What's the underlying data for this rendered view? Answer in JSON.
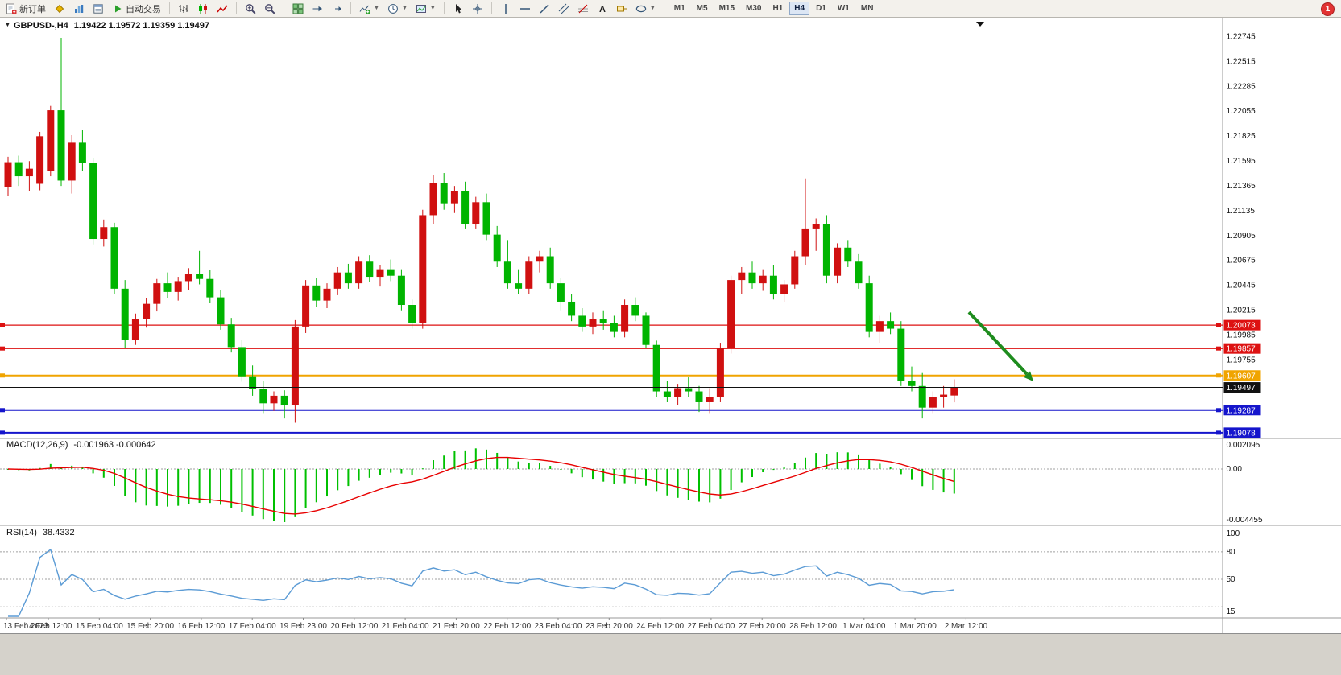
{
  "app": {
    "notification_count": "1",
    "toolbar": {
      "groups": [
        {
          "buttons": [
            {
              "name": "new-order",
              "icon": "new-order-icon",
              "label": "新订单"
            },
            {
              "name": "quotes",
              "icon": "quotes-icon"
            },
            {
              "name": "market-watch",
              "icon": "market-watch-icon"
            },
            {
              "name": "data-window",
              "icon": "data-window-icon"
            },
            {
              "name": "auto-trading",
              "icon": "autotrade-icon",
              "label": "自动交易"
            }
          ]
        },
        {
          "buttons": [
            {
              "name": "bar-chart-mode",
              "icon": "bar-chart-icon"
            },
            {
              "name": "candle-chart-mode",
              "icon": "candle-chart-icon"
            },
            {
              "name": "line-chart-mode",
              "icon": "line-chart-icon"
            }
          ]
        },
        {
          "buttons": [
            {
              "name": "zoom-in",
              "icon": "zoom-in-icon"
            },
            {
              "name": "zoom-out",
              "icon": "zoom-out-icon"
            }
          ]
        },
        {
          "buttons": [
            {
              "name": "tile-windows",
              "icon": "tile-windows-icon"
            },
            {
              "name": "auto-scroll",
              "icon": "auto-scroll-icon"
            },
            {
              "name": "chart-shift",
              "icon": "chart-shift-icon"
            }
          ]
        },
        {
          "buttons": [
            {
              "name": "indicators",
              "icon": "indicators-icon",
              "dropdown": true
            },
            {
              "name": "periods",
              "icon": "period-icon",
              "dropdown": true
            },
            {
              "name": "templates",
              "icon": "template-icon",
              "dropdown": true
            }
          ]
        },
        {
          "buttons": [
            {
              "name": "cursor",
              "icon": "cursor-icon"
            },
            {
              "name": "crosshair",
              "icon": "crosshair-icon"
            }
          ]
        },
        {
          "buttons": [
            {
              "name": "vertical-line",
              "icon": "vertical-line-icon"
            },
            {
              "name": "horizontal-line",
              "icon": "horizontal-line-icon"
            },
            {
              "name": "trendline",
              "icon": "trendline-icon"
            },
            {
              "name": "channel",
              "icon": "channel-icon"
            },
            {
              "name": "fibonacci",
              "icon": "fibonacci-icon"
            },
            {
              "name": "text-tool",
              "icon": "text-icon"
            },
            {
              "name": "label-tool",
              "icon": "label-icon"
            },
            {
              "name": "shapes",
              "icon": "shapes-icon",
              "dropdown": true
            }
          ]
        }
      ],
      "timeframes": {
        "items": [
          "M1",
          "M5",
          "M15",
          "M30",
          "H1",
          "H4",
          "D1",
          "W1",
          "MN"
        ],
        "active": "H4"
      }
    }
  },
  "chart_data": {
    "type": "candlestick",
    "title": "GBPUSD-,H4",
    "symbol": "GBPUSD-",
    "timeframe": "H4",
    "header_ohlc": "1.19422 1.19572 1.19359 1.19497",
    "ohlc_display": {
      "open": "1.19422",
      "high": "1.19572",
      "low": "1.19359",
      "close": "1.19497"
    },
    "price_axis_ticks": [
      "1.22745",
      "1.22515",
      "1.22285",
      "1.22055",
      "1.21825",
      "1.21595",
      "1.21365",
      "1.21135",
      "1.20905",
      "1.20675",
      "1.20445",
      "1.20215",
      "1.19985",
      "1.19755"
    ],
    "time_labels": [
      "13 Feb 2023",
      "14 Feb 12:00",
      "15 Feb 04:00",
      "15 Feb 20:00",
      "16 Feb 12:00",
      "17 Feb 04:00",
      "19 Feb 23:00",
      "20 Feb 12:00",
      "21 Feb 04:00",
      "21 Feb 20:00",
      "22 Feb 12:00",
      "23 Feb 04:00",
      "23 Feb 20:00",
      "24 Feb 12:00",
      "27 Feb 04:00",
      "27 Feb 20:00",
      "28 Feb 12:00",
      "1 Mar 04:00",
      "1 Mar 20:00",
      "2 Mar 12:00"
    ],
    "candles": [
      [
        1.2135,
        1.2163,
        1.2127,
        1.2158
      ],
      [
        1.2158,
        1.2164,
        1.2136,
        1.2145
      ],
      [
        1.2145,
        1.2159,
        1.2131,
        1.2152
      ],
      [
        1.2138,
        1.2186,
        1.2132,
        1.2182
      ],
      [
        1.215,
        1.221,
        1.2145,
        1.2206
      ],
      [
        1.2206,
        1.2273,
        1.2136,
        1.2141
      ],
      [
        1.2141,
        1.2183,
        1.2129,
        1.2176
      ],
      [
        1.2176,
        1.2188,
        1.215,
        1.2157
      ],
      [
        1.2157,
        1.2162,
        1.2082,
        1.2087
      ],
      [
        1.2087,
        1.2105,
        1.208,
        1.2098
      ],
      [
        1.2098,
        1.2102,
        1.2036,
        1.2041
      ],
      [
        1.2041,
        1.2049,
        1.1986,
        1.1994
      ],
      [
        1.1994,
        1.2018,
        1.1989,
        1.2013
      ],
      [
        1.2013,
        1.2032,
        1.2005,
        1.2027
      ],
      [
        1.2027,
        1.205,
        1.202,
        1.2046
      ],
      [
        1.2046,
        1.2056,
        1.2032,
        1.2038
      ],
      [
        1.2038,
        1.2052,
        1.203,
        1.2048
      ],
      [
        1.2048,
        1.206,
        1.204,
        1.2055
      ],
      [
        1.2055,
        1.2076,
        1.2045,
        1.205
      ],
      [
        1.205,
        1.2058,
        1.2028,
        1.2033
      ],
      [
        1.2033,
        1.204,
        1.2003,
        1.2008
      ],
      [
        1.2008,
        1.2014,
        1.1982,
        1.1987
      ],
      [
        1.1987,
        1.1994,
        1.1955,
        1.196
      ],
      [
        1.196,
        1.197,
        1.1942,
        1.1948
      ],
      [
        1.1948,
        1.1956,
        1.1926,
        1.1935
      ],
      [
        1.1935,
        1.1946,
        1.1928,
        1.1942
      ],
      [
        1.1942,
        1.1947,
        1.1921,
        1.1933
      ],
      [
        1.1933,
        1.2012,
        1.1917,
        1.2006
      ],
      [
        1.2006,
        1.2049,
        1.2,
        1.2044
      ],
      [
        1.2044,
        1.2051,
        1.2024,
        1.203
      ],
      [
        1.203,
        1.2046,
        1.2023,
        1.2041
      ],
      [
        1.2041,
        1.2061,
        1.2035,
        1.2056
      ],
      [
        1.2056,
        1.2064,
        1.2041,
        1.2046
      ],
      [
        1.2046,
        1.2071,
        1.2041,
        1.2066
      ],
      [
        1.2066,
        1.2072,
        1.2047,
        1.2052
      ],
      [
        1.2052,
        1.2063,
        1.2043,
        1.2059
      ],
      [
        1.2059,
        1.2068,
        1.2048,
        1.2053
      ],
      [
        1.2053,
        1.2059,
        1.2021,
        1.2026
      ],
      [
        1.2026,
        1.2031,
        1.2004,
        1.2009
      ],
      [
        1.2009,
        1.2114,
        1.2004,
        1.2109
      ],
      [
        1.2109,
        1.2146,
        1.2101,
        1.2139
      ],
      [
        1.2139,
        1.2148,
        1.2114,
        1.212
      ],
      [
        1.212,
        1.2136,
        1.2111,
        1.2131
      ],
      [
        1.2131,
        1.214,
        1.2096,
        1.2101
      ],
      [
        1.2101,
        1.2126,
        1.2096,
        1.2121
      ],
      [
        1.2121,
        1.2129,
        1.2086,
        1.2091
      ],
      [
        1.2091,
        1.2099,
        1.2061,
        1.2066
      ],
      [
        1.2066,
        1.2086,
        1.2041,
        1.2046
      ],
      [
        1.2046,
        1.2059,
        1.2036,
        1.2041
      ],
      [
        1.2041,
        1.2071,
        1.2036,
        1.2066
      ],
      [
        1.2066,
        1.2076,
        1.2056,
        1.2071
      ],
      [
        1.2071,
        1.2079,
        1.2041,
        1.2046
      ],
      [
        1.2046,
        1.2051,
        1.2021,
        1.2029
      ],
      [
        1.2029,
        1.2036,
        1.2011,
        1.2016
      ],
      [
        1.2016,
        1.2023,
        1.2001,
        1.2006
      ],
      [
        1.2006,
        1.2019,
        1.1999,
        1.2013
      ],
      [
        1.2013,
        1.2021,
        1.2003,
        1.2009
      ],
      [
        1.2009,
        1.2016,
        1.1996,
        1.2001
      ],
      [
        1.2001,
        1.2031,
        1.1996,
        1.2026
      ],
      [
        1.2026,
        1.2033,
        1.2011,
        1.2016
      ],
      [
        1.2016,
        1.2019,
        1.1986,
        1.1989
      ],
      [
        1.1989,
        1.1993,
        1.1941,
        1.1946
      ],
      [
        1.1946,
        1.1956,
        1.1936,
        1.1941
      ],
      [
        1.1941,
        1.1953,
        1.1933,
        1.1949
      ],
      [
        1.1949,
        1.1959,
        1.1941,
        1.1946
      ],
      [
        1.1946,
        1.1951,
        1.1927,
        1.1936
      ],
      [
        1.1936,
        1.1949,
        1.1926,
        1.1941
      ],
      [
        1.1941,
        1.1991,
        1.1936,
        1.1986
      ],
      [
        1.1986,
        1.2053,
        1.1981,
        1.2049
      ],
      [
        1.2049,
        1.2061,
        1.2036,
        1.2056
      ],
      [
        1.2056,
        1.2066,
        1.2041,
        1.2046
      ],
      [
        1.2046,
        1.2059,
        1.2039,
        1.2053
      ],
      [
        1.2053,
        1.2063,
        1.2031,
        1.2036
      ],
      [
        1.2036,
        1.2049,
        1.2029,
        1.2045
      ],
      [
        1.2045,
        1.2076,
        1.2041,
        1.2071
      ],
      [
        1.2071,
        1.2143,
        1.2063,
        1.2096
      ],
      [
        1.2096,
        1.2106,
        1.2076,
        1.2101
      ],
      [
        1.2101,
        1.2109,
        1.2046,
        1.2053
      ],
      [
        1.2053,
        1.2083,
        1.2046,
        1.2079
      ],
      [
        1.2079,
        1.2086,
        1.2061,
        1.2066
      ],
      [
        1.2066,
        1.2073,
        1.2041,
        1.2046
      ],
      [
        1.2046,
        1.2053,
        1.1996,
        1.2001
      ],
      [
        1.2001,
        1.2016,
        1.1991,
        1.2011
      ],
      [
        1.2011,
        1.2019,
        1.1999,
        1.2004
      ],
      [
        1.2004,
        1.2011,
        1.1951,
        1.1956
      ],
      [
        1.1956,
        1.1969,
        1.1946,
        1.1951
      ],
      [
        1.1951,
        1.1963,
        1.1921,
        1.1931
      ],
      [
        1.1931,
        1.1946,
        1.1926,
        1.1941
      ],
      [
        1.1941,
        1.1951,
        1.1931,
        1.1943
      ],
      [
        1.19422,
        1.19572,
        1.19359,
        1.19497
      ]
    ],
    "hlines": [
      {
        "label": "1.20073",
        "price": 1.20073,
        "color": "#DD1111",
        "thick": false
      },
      {
        "label": "1.19857",
        "price": 1.19857,
        "color": "#DD1111",
        "thick": false
      },
      {
        "label": "1.19607",
        "price": 1.19607,
        "color": "#F0A400",
        "thick": true
      },
      {
        "label": "1.19287",
        "price": 1.19287,
        "color": "#1515CC",
        "thick": true
      },
      {
        "label": "1.19078",
        "price": 1.19078,
        "color": "#1515CC",
        "thick": true
      }
    ],
    "bid_line": {
      "label": "1.19497",
      "price": 1.19497,
      "color": "#111111"
    },
    "arrow_annotation": {
      "color": "#1E8C1E"
    },
    "macd": {
      "label": "MACD(12,26,9)",
      "values": "-0.001963 -0.000642",
      "fast": 12,
      "slow": 26,
      "signal": 9,
      "axis_labels": [
        "0.002095",
        "0.00",
        "-0.004455"
      ],
      "axis_max": 0.002095,
      "axis_min": -0.004455
    },
    "rsi": {
      "label": "RSI(14)",
      "value": "38.4332",
      "period": 14,
      "axis_labels": [
        "100",
        "80",
        "50",
        "15"
      ],
      "axis_max": 100,
      "axis_min": 15,
      "levels": [
        80,
        50,
        20
      ]
    },
    "colors": {
      "bull": "#D01010",
      "bear": "#00B400",
      "macd_histogram": "#00C000",
      "macd_signal": "#E80000",
      "rsi": "#5B9BD5",
      "grid_dotted": "#A0A0A0",
      "axis_text": "#111111",
      "time_text": "#333333",
      "arrow": "#1E8C1E"
    }
  }
}
